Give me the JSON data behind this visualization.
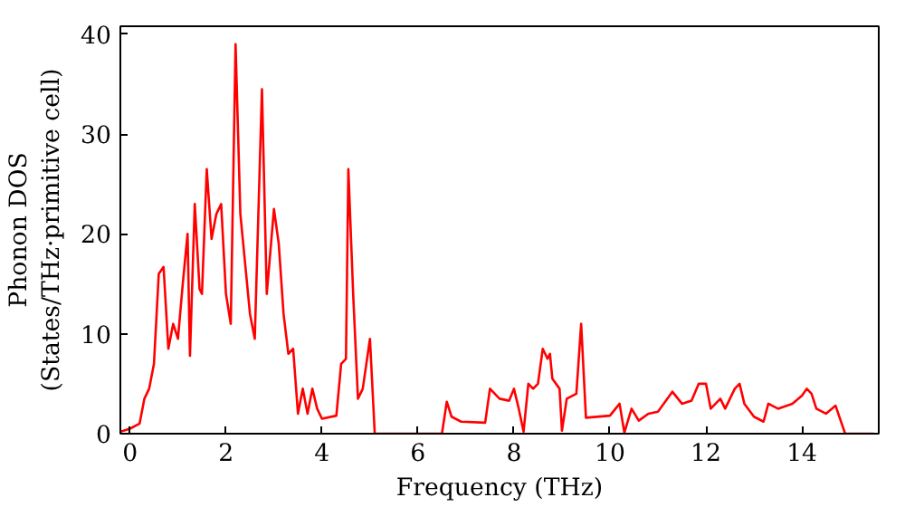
{
  "chart_data": {
    "type": "line",
    "xlabel": "Frequency (THz)",
    "ylabel": "Phonon DOS\n(States/THz·primitive cell)",
    "xlim": [
      -0.2,
      15.6
    ],
    "ylim": [
      0,
      40.8
    ],
    "xticks": [
      0,
      2,
      4,
      6,
      8,
      10,
      12,
      14
    ],
    "yticks": [
      0,
      10,
      20,
      30,
      40
    ],
    "grid": false,
    "series": [
      {
        "color": "#ff0000",
        "x": [
          -0.2,
          0,
          0.2,
          0.3,
          0.4,
          0.5,
          0.6,
          0.7,
          0.8,
          0.9,
          1.0,
          1.1,
          1.2,
          1.25,
          1.35,
          1.45,
          1.5,
          1.6,
          1.7,
          1.8,
          1.9,
          2.0,
          2.1,
          2.2,
          2.3,
          2.4,
          2.5,
          2.6,
          2.75,
          2.85,
          3.0,
          3.1,
          3.2,
          3.3,
          3.4,
          3.5,
          3.6,
          3.7,
          3.8,
          3.9,
          4.0,
          4.3,
          4.4,
          4.5,
          4.55,
          4.65,
          4.75,
          4.85,
          5.0,
          5.1,
          6.5,
          6.6,
          6.7,
          6.9,
          7.4,
          7.5,
          7.7,
          7.9,
          8.0,
          8.1,
          8.2,
          8.3,
          8.4,
          8.5,
          8.6,
          8.7,
          8.75,
          8.8,
          8.95,
          9.0,
          9.1,
          9.3,
          9.4,
          9.5,
          10.0,
          10.2,
          10.3,
          10.45,
          10.6,
          10.8,
          11.0,
          11.3,
          11.5,
          11.7,
          11.85,
          12.0,
          12.1,
          12.3,
          12.4,
          12.6,
          12.7,
          12.8,
          13.0,
          13.2,
          13.3,
          13.5,
          13.8,
          14.0,
          14.1,
          14.2,
          14.3,
          14.5,
          14.7,
          14.9,
          15.5
        ],
        "values": [
          0.2,
          0.5,
          1,
          3.5,
          4.5,
          7,
          16,
          16.7,
          8.5,
          11,
          9.5,
          15,
          20,
          7.8,
          23,
          14.5,
          14,
          26.5,
          19.5,
          22,
          23,
          14,
          11,
          39,
          22,
          17,
          12,
          9.5,
          34.5,
          14,
          22.5,
          19,
          12,
          8,
          8.5,
          2,
          4.5,
          2,
          4.5,
          2.5,
          1.5,
          1.8,
          7,
          7.5,
          26.5,
          14,
          3.5,
          4.5,
          9.5,
          0,
          0,
          3.2,
          1.7,
          1.2,
          1.1,
          4.5,
          3.5,
          3.3,
          4.5,
          2.5,
          0.2,
          5,
          4.5,
          5,
          8.5,
          7.5,
          8,
          5.5,
          4.5,
          0.3,
          3.5,
          4,
          11,
          1.6,
          1.8,
          3,
          0.1,
          2.5,
          1.3,
          2,
          2.2,
          4.2,
          3,
          3.3,
          5,
          5,
          2.5,
          3.5,
          2.5,
          4.5,
          5,
          3,
          1.7,
          1.2,
          3,
          2.5,
          3,
          3.8,
          4.5,
          4,
          2.5,
          2,
          2.8,
          0,
          0
        ]
      }
    ]
  }
}
